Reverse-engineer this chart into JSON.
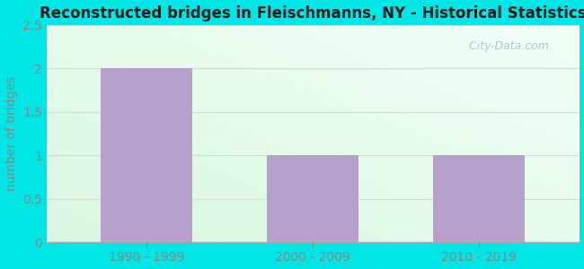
{
  "categories": [
    "1990 - 1999",
    "2000 - 2009",
    "2010 - 2019"
  ],
  "values": [
    2,
    1,
    1
  ],
  "bar_color": "#b8a0cc",
  "title": "Reconstructed bridges in Fleischmanns, NY - Historical Statistics",
  "ylabel": "number of bridges",
  "ylim": [
    0,
    2.5
  ],
  "yticks": [
    0,
    0.5,
    1,
    1.5,
    2,
    2.5
  ],
  "outer_bg": "#00e5e5",
  "title_color": "#1a1a1a",
  "tick_label_color": "#888888",
  "ylabel_color": "#888888",
  "grid_color": "#d0ddd0",
  "watermark_text": "  City-Data.com",
  "watermark_color": "#aabbcc",
  "bar_width": 0.55
}
